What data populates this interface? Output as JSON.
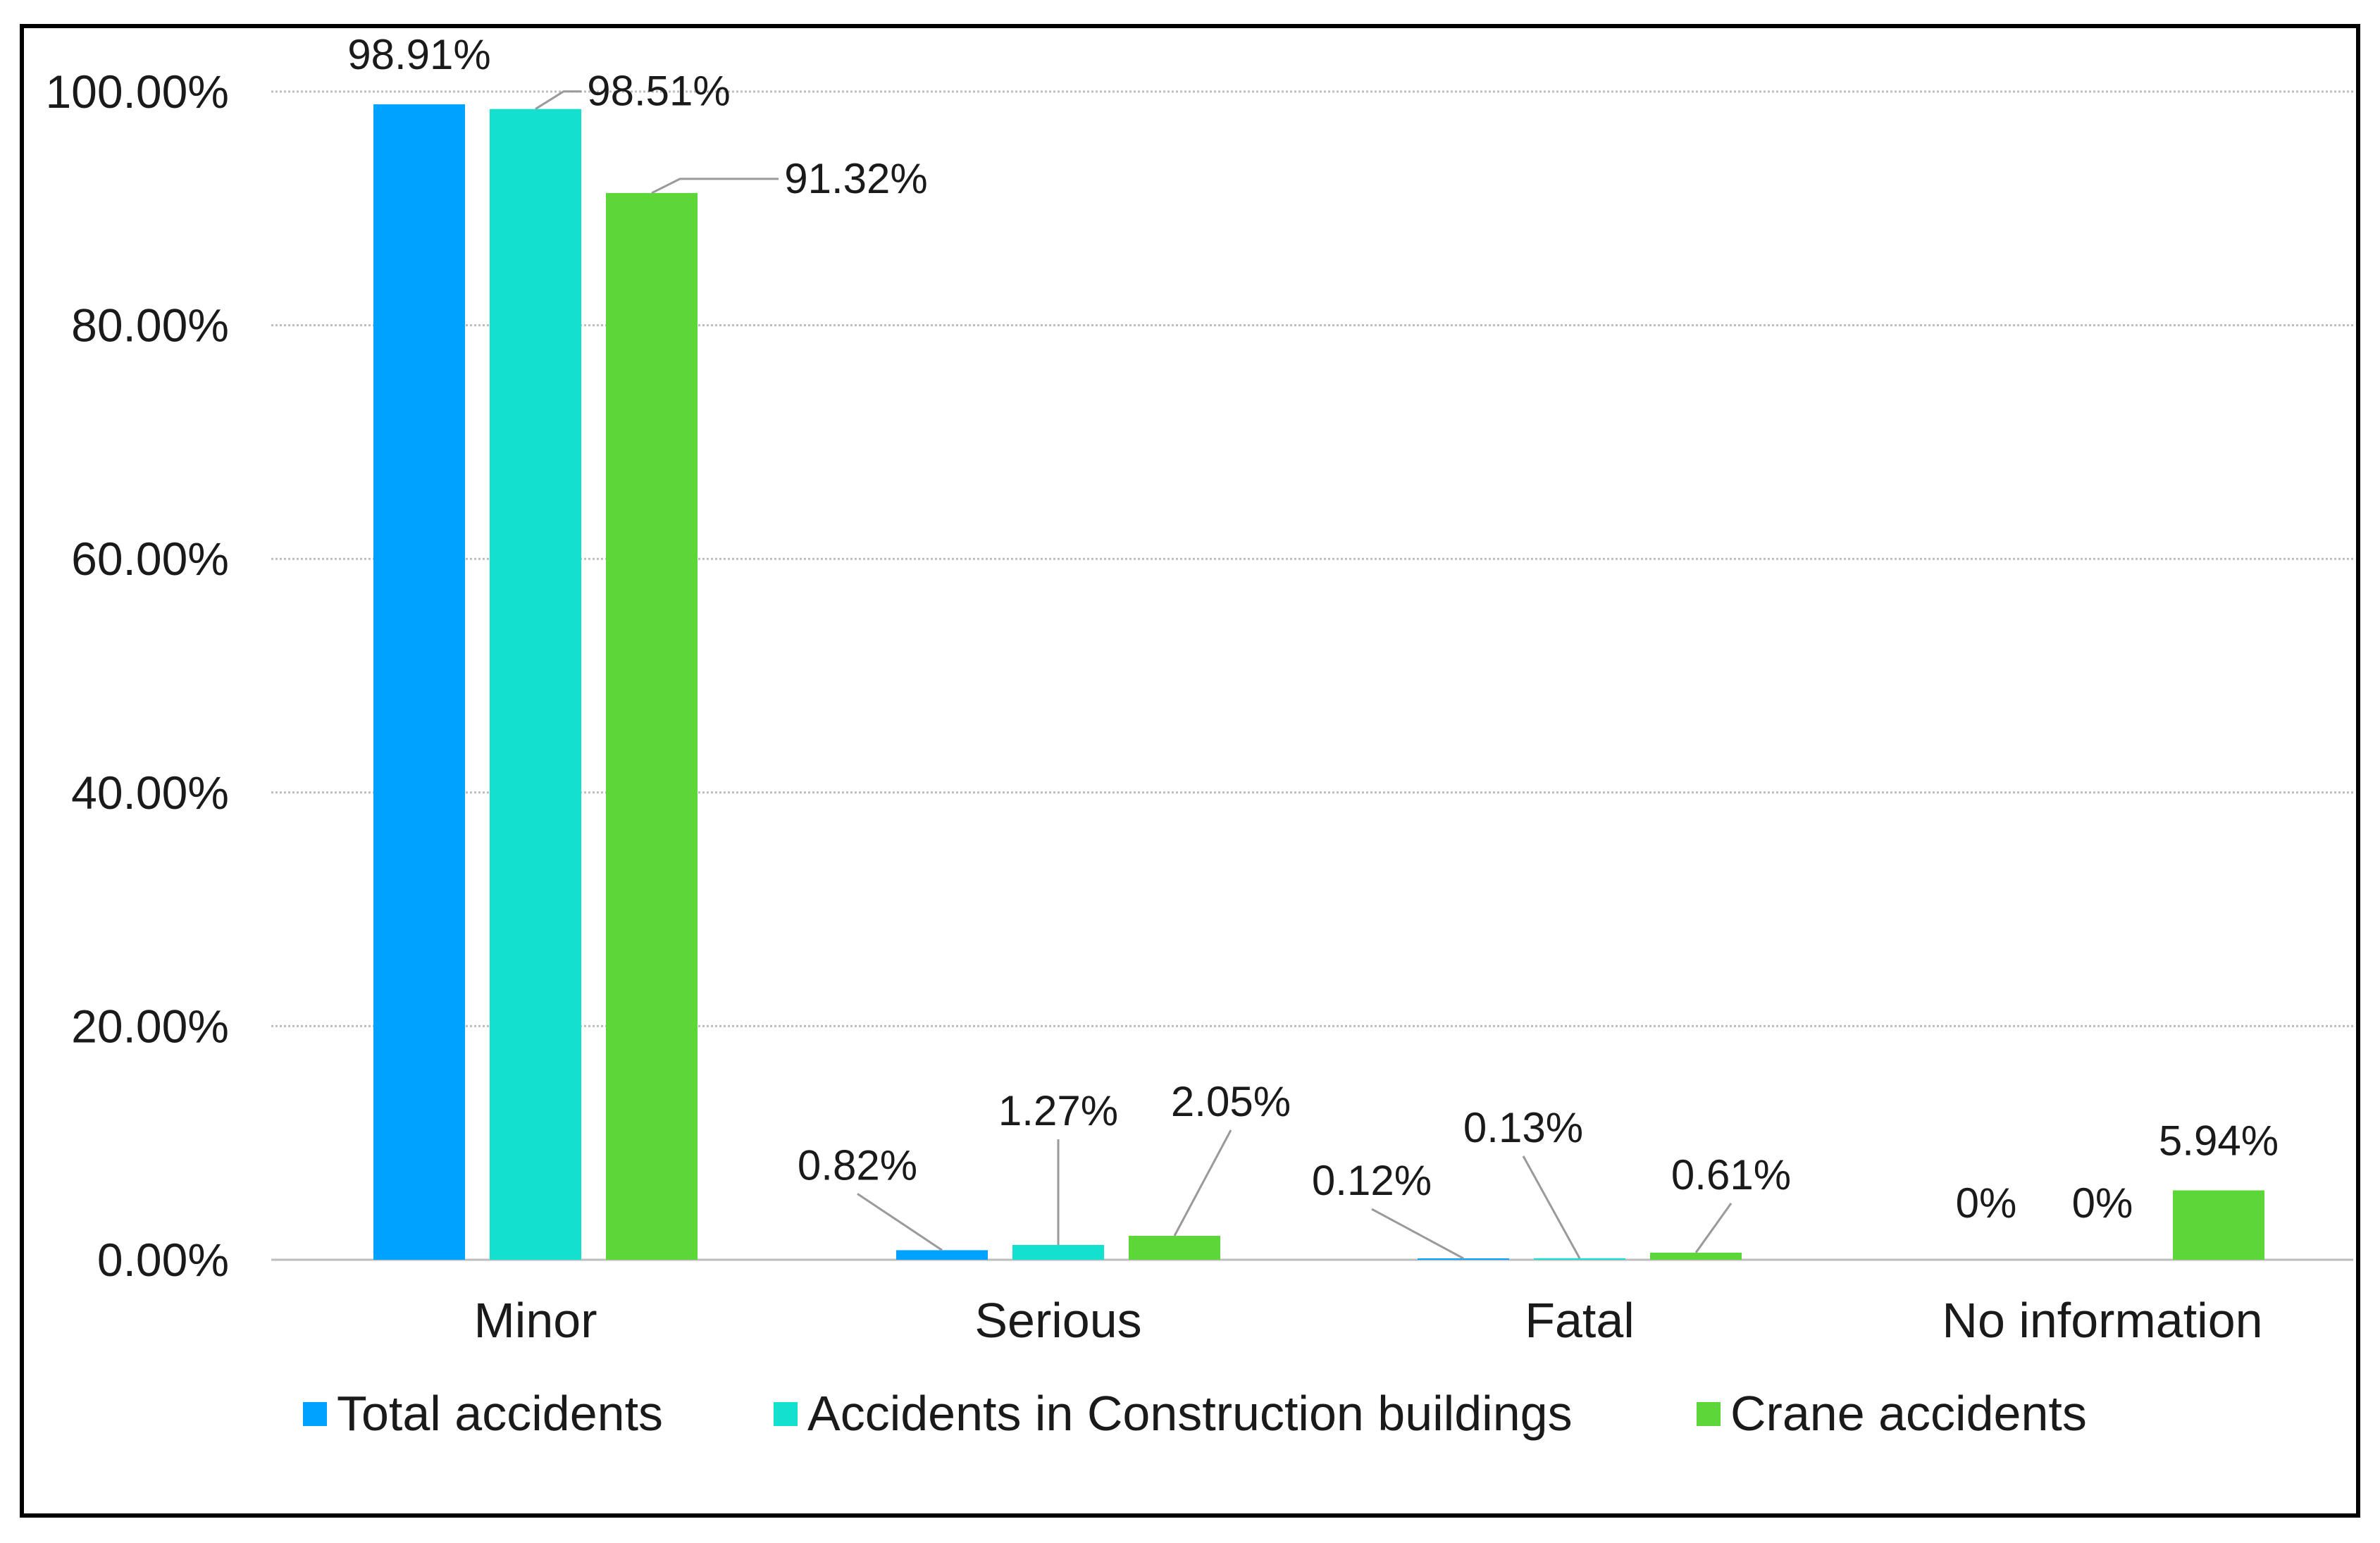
{
  "chart_data": {
    "type": "bar",
    "title": "",
    "xlabel": "",
    "ylabel": "",
    "categories": [
      "Minor",
      "Serious",
      "Fatal",
      "No information"
    ],
    "series": [
      {
        "name": "Total accidents",
        "color": "#00a2ff",
        "values": [
          98.91,
          0.82,
          0.12,
          0
        ],
        "labels": [
          "98.91%",
          "0.82%",
          "0.12%",
          "0%"
        ]
      },
      {
        "name": "Accidents in Construction buildings",
        "color": "#14e0cf",
        "values": [
          98.51,
          1.27,
          0.13,
          0
        ],
        "labels": [
          "98.51%",
          "1.27%",
          "0.13%",
          "0%"
        ]
      },
      {
        "name": "Crane accidents",
        "color": "#5dd63a",
        "values": [
          91.32,
          2.05,
          0.61,
          5.94
        ],
        "labels": [
          "91.32%",
          "2.05%",
          "0.61%",
          "5.94%"
        ]
      }
    ],
    "ylim": [
      0,
      100
    ],
    "yticks": [
      0,
      20,
      40,
      60,
      80,
      100
    ],
    "ytick_labels": [
      "0.00%",
      "20.00%",
      "40.00%",
      "60.00%",
      "80.00%",
      "100.00%"
    ],
    "grid": true,
    "legend": "bottom"
  }
}
